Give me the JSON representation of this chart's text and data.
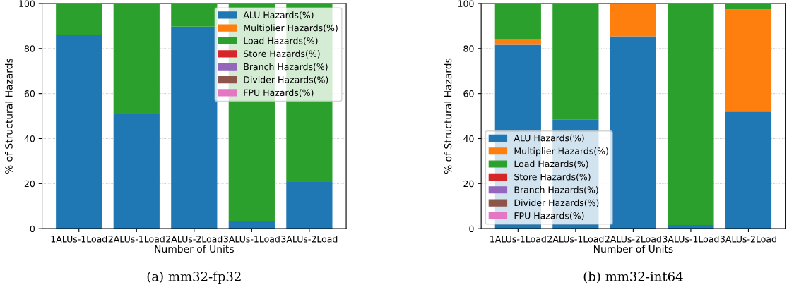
{
  "chart_data": [
    {
      "type": "bar",
      "stacked": true,
      "xlabel": "Number of Units",
      "ylabel": "% of Structural Hazards",
      "annotations": [
        "(a) mm32-fp32"
      ],
      "categories": [
        "1ALUs-1Load",
        "2ALUs-1Load",
        "2ALUs-2Load",
        "3ALUs-1Load",
        "3ALUs-2Load"
      ],
      "ylim": [
        0,
        100
      ],
      "yticks": [
        0,
        20,
        40,
        60,
        80,
        100
      ],
      "grid": "y",
      "legend": "top right",
      "series": [
        {
          "name": "ALU Hazards(%)",
          "color": "#1f77b4",
          "values": [
            86,
            51,
            89.7,
            3.5,
            20.7
          ]
        },
        {
          "name": "Multiplier Hazards(%)",
          "color": "#ff7f0e",
          "values": [
            0,
            0,
            0,
            0,
            0
          ]
        },
        {
          "name": "Load Hazards(%)",
          "color": "#2ca02c",
          "values": [
            14,
            49,
            10.3,
            96.5,
            79.3
          ]
        },
        {
          "name": "Store Hazards(%)",
          "color": "#d62728",
          "values": [
            0,
            0,
            0,
            0,
            0
          ]
        },
        {
          "name": "Branch Hazards(%)",
          "color": "#9467bd",
          "values": [
            0,
            0,
            0,
            0,
            0
          ]
        },
        {
          "name": "Divider Hazards(%)",
          "color": "#8c564b",
          "values": [
            0,
            0,
            0,
            0,
            0
          ]
        },
        {
          "name": "FPU Hazards(%)",
          "color": "#e377c2",
          "values": [
            0,
            0,
            0,
            0,
            0
          ]
        }
      ]
    },
    {
      "type": "bar",
      "stacked": true,
      "xlabel": "Number of Units",
      "ylabel": "% of Structural Hazards",
      "annotations": [
        "(b) mm32-int64"
      ],
      "categories": [
        "1ALUs-1Load",
        "2ALUs-1Load",
        "2ALUs-2Load",
        "3ALUs-1Load",
        "3ALUs-2Load"
      ],
      "ylim": [
        0,
        100
      ],
      "yticks": [
        0,
        20,
        40,
        60,
        80,
        100
      ],
      "grid": "y",
      "legend": "bottom left",
      "series": [
        {
          "name": "ALU Hazards(%)",
          "color": "#1f77b4",
          "values": [
            81.7,
            48.5,
            85.4,
            1.6,
            52
          ]
        },
        {
          "name": "Multiplier Hazards(%)",
          "color": "#ff7f0e",
          "values": [
            2.4,
            0,
            14.6,
            0,
            45.3
          ]
        },
        {
          "name": "Load Hazards(%)",
          "color": "#2ca02c",
          "values": [
            15.9,
            51.5,
            0,
            98.4,
            2.7
          ]
        },
        {
          "name": "Store Hazards(%)",
          "color": "#d62728",
          "values": [
            0,
            0,
            0,
            0,
            0
          ]
        },
        {
          "name": "Branch Hazards(%)",
          "color": "#9467bd",
          "values": [
            0,
            0,
            0,
            0,
            0
          ]
        },
        {
          "name": "Divider Hazards(%)",
          "color": "#8c564b",
          "values": [
            0,
            0,
            0,
            0,
            0
          ]
        },
        {
          "name": "FPU Hazards(%)",
          "color": "#e377c2",
          "values": [
            0,
            0,
            0,
            0,
            0
          ]
        }
      ]
    }
  ]
}
